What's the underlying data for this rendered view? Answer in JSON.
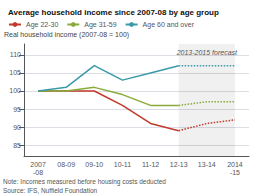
{
  "chart_data": {
    "type": "line",
    "title": "Average household income since 2007-08 by age group",
    "ylabel": "Real household income (2007-08 = 100)",
    "categories": [
      "2007\n-08",
      "08-09",
      "09-10",
      "10-11",
      "11-12",
      "12-13",
      "13-14",
      "2014\n-15"
    ],
    "series": [
      {
        "name": "Age 22-30",
        "color": "#c0392b",
        "line_style": "solid",
        "values": [
          100,
          100,
          100,
          96,
          91,
          89,
          null,
          null
        ]
      },
      {
        "name": "Age 22-30",
        "color": "#c0392b",
        "line_style": "dotted",
        "values": [
          null,
          null,
          null,
          null,
          null,
          89,
          91,
          92
        ]
      },
      {
        "name": "Age 31-59",
        "color": "#8aab3a",
        "line_style": "solid",
        "values": [
          100,
          100,
          101,
          99,
          96,
          96,
          null,
          null
        ]
      },
      {
        "name": "Age 31-59",
        "color": "#8aab3a",
        "line_style": "dotted",
        "values": [
          null,
          null,
          null,
          null,
          null,
          96,
          97,
          97
        ]
      },
      {
        "name": "Age 60 and over",
        "color": "#3a9aaa",
        "line_style": "solid",
        "values": [
          100,
          101,
          107,
          103,
          105,
          107,
          null,
          null
        ]
      },
      {
        "name": "Age 60 and over",
        "color": "#3a9aaa",
        "line_style": "dotted",
        "values": [
          null,
          null,
          null,
          null,
          null,
          107,
          107,
          107
        ]
      }
    ],
    "ylim": [
      82,
      113
    ],
    "yticks": [
      85,
      90,
      95,
      100,
      105,
      110
    ],
    "grid": true,
    "legend": "top",
    "annotations": [
      {
        "text": "2013-2015 forecast",
        "x": "12-13"
      },
      {
        "text": "Note: Incomes measured before housing costs deducted"
      },
      {
        "text": "Source: IFS, Nuffield Foundation"
      }
    ]
  }
}
